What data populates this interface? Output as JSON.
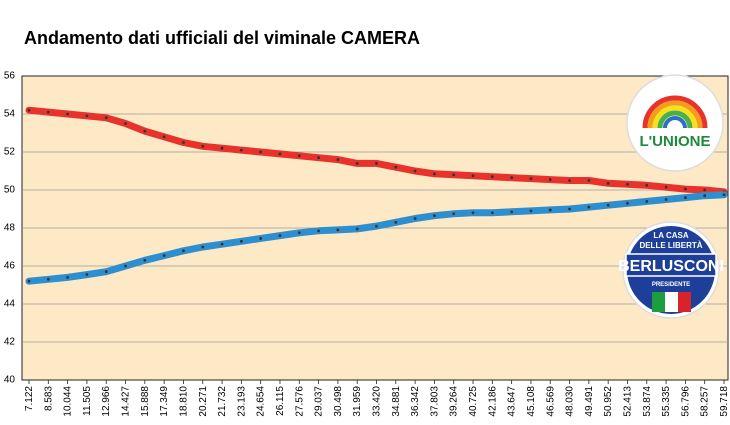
{
  "chart_data": {
    "type": "line",
    "title": "Andamento dati ufficiali del viminale CAMERA",
    "xlabel": "",
    "ylabel": "",
    "ylim": [
      40,
      56
    ],
    "yticks": [
      "40",
      "42",
      "44",
      "46",
      "48",
      "50",
      "52",
      "54",
      "56"
    ],
    "categories": [
      "7.122",
      "8.583",
      "10.044",
      "11.505",
      "12.966",
      "14.427",
      "15.888",
      "17.349",
      "18.810",
      "20.271",
      "21.732",
      "23.193",
      "24.654",
      "26.115",
      "27.576",
      "29.037",
      "30.498",
      "31.959",
      "33.420",
      "34.881",
      "36.342",
      "37.803",
      "39.264",
      "40.725",
      "42.186",
      "43.647",
      "45.108",
      "46.569",
      "48.030",
      "49.491",
      "50.952",
      "52.413",
      "53.874",
      "55.335",
      "56.796",
      "58.257",
      "59.718"
    ],
    "series": [
      {
        "color": "#e8322c",
        "logo": "L'UNIONE",
        "values": [
          54.2,
          54.1,
          54.0,
          53.9,
          53.8,
          53.5,
          53.1,
          52.8,
          52.5,
          52.3,
          52.2,
          52.1,
          52.0,
          51.9,
          51.8,
          51.7,
          51.6,
          51.4,
          51.4,
          51.2,
          51.0,
          50.85,
          50.8,
          50.75,
          50.7,
          50.65,
          50.6,
          50.55,
          50.5,
          50.5,
          50.35,
          50.3,
          50.25,
          50.15,
          50.05,
          50.0,
          49.9
        ]
      },
      {
        "color": "#2e8fd0",
        "logo": "BERLUSCONI",
        "values": [
          45.2,
          45.3,
          45.4,
          45.55,
          45.7,
          46.0,
          46.3,
          46.55,
          46.8,
          47.0,
          47.15,
          47.3,
          47.45,
          47.6,
          47.75,
          47.85,
          47.9,
          47.95,
          48.1,
          48.3,
          48.5,
          48.65,
          48.75,
          48.8,
          48.8,
          48.85,
          48.9,
          48.95,
          49.0,
          49.1,
          49.2,
          49.3,
          49.4,
          49.5,
          49.6,
          49.7,
          49.75
        ]
      }
    ]
  },
  "legend": {
    "unione": {
      "text": "L'UNIONE"
    },
    "cdl": {
      "line1": "LA CASA",
      "line2": "DELLE LIBERTÀ",
      "name": "BERLUSCONI",
      "sub": "PRESIDENTE"
    }
  }
}
